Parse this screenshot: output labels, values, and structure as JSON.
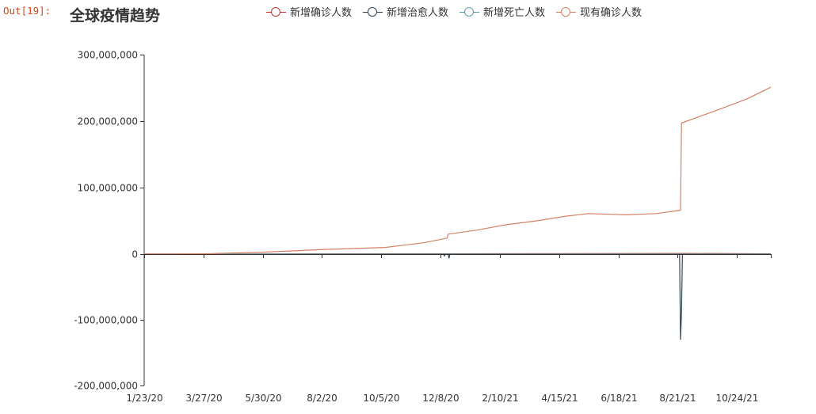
{
  "notebook": {
    "out_prompt": "Out[19]:"
  },
  "chart_data": {
    "type": "line",
    "title": "全球疫情趋势",
    "legend_position": "top",
    "grid": false,
    "ylim": [
      -200000000,
      300000000
    ],
    "yticks": [
      300000000,
      200000000,
      100000000,
      0,
      -100000000,
      -200000000
    ],
    "ytick_labels": [
      "300,000,000",
      "200,000,000",
      "100,000,000",
      "0",
      "-100,000,000",
      "-200,000,000"
    ],
    "x_tick_labels": [
      "1/23/20",
      "3/27/20",
      "5/30/20",
      "8/2/20",
      "10/5/20",
      "12/8/20",
      "2/10/21",
      "4/15/21",
      "6/18/21",
      "8/21/21",
      "10/24/21"
    ],
    "series": [
      {
        "name": "新增确诊人数",
        "color": "#c23531",
        "points": [
          [
            "1/23/20",
            0
          ],
          [
            "8/21/21",
            1000000
          ],
          [
            "11/19/21",
            500000
          ]
        ]
      },
      {
        "name": "新增治愈人数",
        "color": "#2f4554",
        "points": [
          [
            "1/23/20",
            0
          ],
          [
            "12/6/20",
            0
          ],
          [
            "12/7/20",
            -3000000
          ],
          [
            "12/8/20",
            0
          ],
          [
            "12/11/20",
            0
          ],
          [
            "12/12/20",
            -6000000
          ],
          [
            "12/13/20",
            0
          ],
          [
            "8/14/21",
            0
          ],
          [
            "8/15/21",
            -130000000
          ],
          [
            "8/16/21",
            -90000000
          ],
          [
            "8/17/21",
            0
          ],
          [
            "11/19/21",
            0
          ]
        ]
      },
      {
        "name": "新增死亡人数",
        "color": "#61a0a8",
        "points": [
          [
            "1/23/20",
            0
          ],
          [
            "11/19/21",
            0
          ]
        ]
      },
      {
        "name": "现有确诊人数",
        "color": "#d48265",
        "points": [
          [
            "1/23/20",
            0
          ],
          [
            "3/27/20",
            500000
          ],
          [
            "5/30/20",
            3000000
          ],
          [
            "8/2/20",
            7000000
          ],
          [
            "10/5/20",
            10000000
          ],
          [
            "11/15/20",
            17000000
          ],
          [
            "12/10/20",
            24000000
          ],
          [
            "12/11/20",
            30000000
          ],
          [
            "1/10/21",
            36000000
          ],
          [
            "2/10/21",
            44000000
          ],
          [
            "3/15/21",
            50000000
          ],
          [
            "4/15/21",
            57000000
          ],
          [
            "5/10/21",
            61000000
          ],
          [
            "6/18/21",
            59000000
          ],
          [
            "7/20/21",
            61000000
          ],
          [
            "8/15/21",
            66000000
          ],
          [
            "8/16/21",
            197000000
          ],
          [
            "9/20/21",
            215000000
          ],
          [
            "10/24/21",
            233000000
          ],
          [
            "11/19/21",
            251000000
          ]
        ]
      }
    ]
  }
}
